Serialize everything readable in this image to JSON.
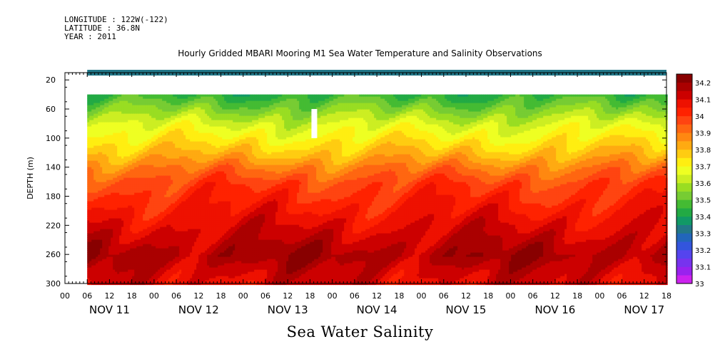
{
  "header": {
    "longitude": "LONGITUDE : 122W(-122)",
    "latitude": "LATITUDE : 36.8N",
    "year": "YEAR : 2011"
  },
  "caption": "Sea Water Salinity",
  "chart_data": {
    "type": "heatmap",
    "title": "Hourly Gridded MBARI Mooring M1 Sea Water Temperature and Salinity Observations",
    "ylabel": "DEPTH (m)",
    "xlabel": "",
    "ylim": [
      300,
      10
    ],
    "xlim_hours": [
      0,
      162
    ],
    "y_ticks": [
      20,
      60,
      100,
      140,
      180,
      220,
      260,
      300
    ],
    "x_hour_ticks": [
      "00",
      "06",
      "12",
      "18",
      "00",
      "06",
      "12",
      "18",
      "00",
      "06",
      "12",
      "18",
      "00",
      "06",
      "12",
      "18",
      "00",
      "06",
      "12",
      "18",
      "00",
      "06",
      "12",
      "18",
      "00",
      "06",
      "12",
      "18"
    ],
    "day_labels": [
      "NOV 11",
      "NOV 12",
      "NOV 13",
      "NOV 14",
      "NOV 15",
      "NOV 16",
      "NOV 17"
    ],
    "colorbar": {
      "labels": [
        "34.2",
        "34.1",
        "34",
        "33.9",
        "33.8",
        "33.7",
        "33.6",
        "33.5",
        "33.4",
        "33.3",
        "33.2",
        "33.1",
        "33"
      ],
      "levels": [
        33.0,
        33.05,
        33.1,
        33.15,
        33.2,
        33.25,
        33.3,
        33.35,
        33.4,
        33.45,
        33.5,
        33.55,
        33.6,
        33.65,
        33.7,
        33.75,
        33.8,
        33.85,
        33.9,
        33.95,
        34.0,
        34.05,
        34.1,
        34.15,
        34.2
      ],
      "colors": [
        "#cc22ee",
        "#9922ee",
        "#7733ee",
        "#5544ee",
        "#3355dd",
        "#2266bb",
        "#227788",
        "#119966",
        "#22aa44",
        "#44bb33",
        "#77cc33",
        "#99dd22",
        "#ccee22",
        "#eeff22",
        "#ffee11",
        "#ffcc11",
        "#ffaa11",
        "#ff8811",
        "#ff6611",
        "#ff4411",
        "#ff2200",
        "#ee1100",
        "#cc0000",
        "#aa0000",
        "#880000"
      ]
    },
    "profile": {
      "depths": [
        40,
        60,
        80,
        100,
        120,
        140,
        160,
        180,
        200,
        220,
        240,
        260,
        280,
        300
      ],
      "salinity": [
        33.45,
        33.55,
        33.65,
        33.72,
        33.8,
        33.9,
        33.98,
        34.02,
        34.06,
        34.1,
        34.14,
        34.18,
        34.13,
        34.1
      ]
    },
    "surface_band": {
      "depth_range": [
        10,
        14
      ],
      "salinity": 33.3
    },
    "missing_data": [
      {
        "depth_range": [
          14,
          40
        ],
        "hours_range": [
          6,
          162
        ]
      },
      {
        "depth_range": [
          60,
          100
        ],
        "hours_range": [
          66,
          67
        ]
      }
    ]
  }
}
